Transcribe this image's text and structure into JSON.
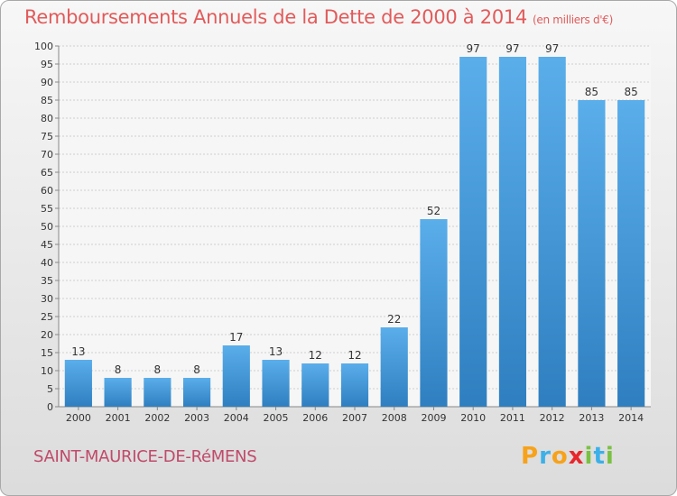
{
  "header": {
    "title": "Remboursements Annuels de la Dette de 2000 à 2014",
    "unit": "(en milliers d'€)"
  },
  "commune": "SAINT-MAURICE-DE-RéMENS",
  "brand": {
    "letters": [
      "P",
      "r",
      "o",
      "x",
      "i",
      "t",
      "i"
    ],
    "colors": [
      "#f7a21b",
      "#3cb0e8",
      "#f7a21b",
      "#e8262c",
      "#7ac143",
      "#3cb0e8",
      "#7ac143"
    ]
  },
  "chart_data": {
    "type": "bar",
    "title": "Remboursements Annuels de la Dette de 2000 à 2014",
    "subtitle": "(en milliers d'€)",
    "categories": [
      "2000",
      "2001",
      "2002",
      "2003",
      "2004",
      "2005",
      "2006",
      "2007",
      "2008",
      "2009",
      "2010",
      "2011",
      "2012",
      "2013",
      "2014"
    ],
    "values": [
      13,
      8,
      8,
      8,
      17,
      13,
      12,
      12,
      22,
      52,
      97,
      97,
      97,
      85,
      85
    ],
    "xlabel": "",
    "ylabel": "",
    "ylim": [
      0,
      100
    ],
    "yticks": [
      0,
      5,
      10,
      15,
      20,
      25,
      30,
      35,
      40,
      45,
      50,
      55,
      60,
      65,
      70,
      75,
      80,
      85,
      90,
      95,
      100
    ],
    "grid": true,
    "bar_color": "#3a8fd6",
    "data_labels": true
  }
}
